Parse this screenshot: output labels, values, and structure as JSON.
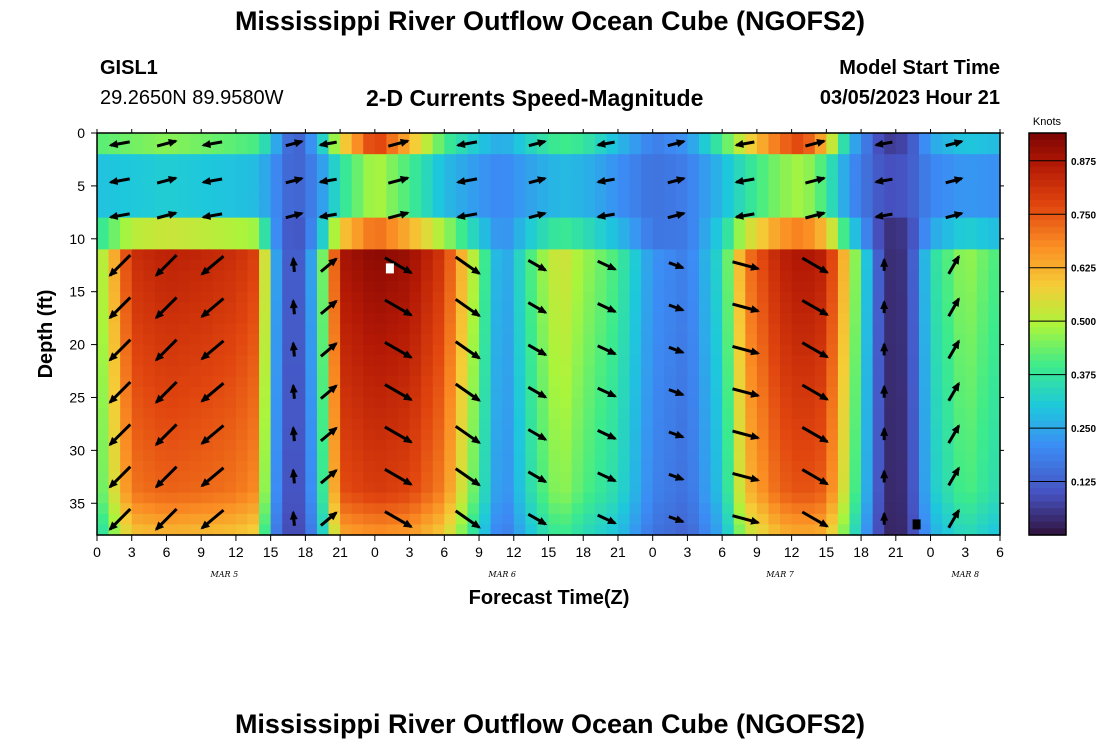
{
  "page": {
    "title": "Mississippi River Outflow Ocean Cube (NGOFS2)",
    "station_id": "GISL1",
    "station_coords": "29.2650N  89.9580W",
    "subtitle": "2-D Currents Speed-Magnitude",
    "model_start_label": "Model Start Time",
    "model_start_value": "03/05/2023 Hour 21",
    "bottom_title": "Mississippi River Outflow Ocean Cube (NGOFS2)"
  },
  "chart_data": {
    "type": "heatmap",
    "title": "2-D Currents Speed-Magnitude",
    "xlabel": "Forecast Time(Z)",
    "ylabel": "Depth (ft)",
    "x_unit": "hours from Mar 5 00Z",
    "x_range": [
      0,
      78
    ],
    "y_range": [
      0,
      38
    ],
    "y_inverted": true,
    "x_ticks": [
      "0",
      "3",
      "6",
      "9",
      "12",
      "15",
      "18",
      "21",
      "0",
      "3",
      "6",
      "9",
      "12",
      "15",
      "18",
      "21",
      "0",
      "3",
      "6",
      "9",
      "12",
      "15",
      "18",
      "21",
      "0",
      "3",
      "6"
    ],
    "y_ticks": [
      "0",
      "5",
      "10",
      "15",
      "20",
      "25",
      "30",
      "35"
    ],
    "date_labels": [
      {
        "text": "MAR 5",
        "hour": 11
      },
      {
        "text": "MAR 6",
        "hour": 35
      },
      {
        "text": "MAR 7",
        "hour": 59
      },
      {
        "text": "MAR 8",
        "hour": 75
      }
    ],
    "colorbar": {
      "title": "Knots",
      "range": [
        0.0,
        0.94
      ],
      "ticks": [
        "0.125",
        "0.250",
        "0.375",
        "0.500",
        "0.625",
        "0.750",
        "0.875"
      ]
    },
    "speed_profile": {
      "hours": [
        0,
        3,
        6,
        9,
        12,
        14,
        15,
        17,
        19,
        21,
        24,
        27,
        30,
        33,
        35,
        38,
        40,
        42,
        45,
        48,
        51,
        54,
        56,
        59,
        61,
        63,
        65,
        68,
        70,
        72,
        75,
        78
      ],
      "surface_speed": [
        0.42,
        0.44,
        0.46,
        0.44,
        0.42,
        0.4,
        0.3,
        0.1,
        0.25,
        0.55,
        0.8,
        0.62,
        0.4,
        0.3,
        0.25,
        0.35,
        0.4,
        0.38,
        0.28,
        0.18,
        0.22,
        0.4,
        0.55,
        0.72,
        0.78,
        0.6,
        0.28,
        0.06,
        0.08,
        0.25,
        0.3,
        0.28
      ],
      "subsurface_speed": [
        0.45,
        0.82,
        0.85,
        0.84,
        0.82,
        0.78,
        0.3,
        0.06,
        0.3,
        0.88,
        0.92,
        0.9,
        0.8,
        0.45,
        0.22,
        0.45,
        0.55,
        0.48,
        0.4,
        0.22,
        0.18,
        0.35,
        0.7,
        0.85,
        0.88,
        0.85,
        0.55,
        0.04,
        0.05,
        0.35,
        0.48,
        0.4
      ]
    },
    "vectors": {
      "hours": [
        2,
        6,
        10,
        17,
        20,
        26,
        32,
        38,
        44,
        50,
        56,
        62,
        68,
        74
      ],
      "depths": [
        1,
        4.5,
        7.8,
        12.5,
        16.5,
        20.5,
        24.5,
        28.5,
        32.5,
        36.5
      ],
      "direction_by_hour_deg": [
        -135,
        -135,
        -140,
        95,
        40,
        -30,
        -35,
        -30,
        -25,
        -20,
        -15,
        -30,
        90,
        60
      ],
      "speed_by_hour": [
        0.85,
        0.85,
        0.82,
        0.15,
        0.45,
        0.92,
        0.85,
        0.45,
        0.42,
        0.22,
        0.75,
        0.85,
        0.05,
        0.45
      ]
    },
    "markers": [
      {
        "hour": 25.3,
        "depth": 12.8,
        "color": "#ffffff"
      },
      {
        "hour": 70.8,
        "depth": 37.0,
        "color": "#000000"
      }
    ]
  }
}
